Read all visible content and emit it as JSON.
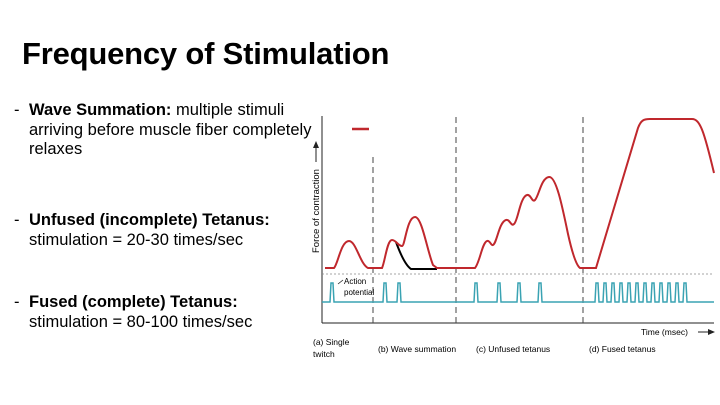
{
  "title": "Frequency of Stimulation",
  "bullets": [
    {
      "term": "Wave Summation",
      "sep": ":",
      "text": " multiple stimuli arriving before muscle fiber completely relaxes"
    },
    {
      "term": "Unfused (incomplete) Tetanus",
      "sep": ":",
      "text": " stimulation = 20-30 times/sec"
    },
    {
      "term": "Fused (complete) Tetanus:",
      "sep": "",
      "text": " stimulation = 80-100 times/sec"
    }
  ],
  "figure": {
    "y_axis_label": "Force of contraction",
    "x_axis_label": "Time (msec)",
    "action_potential_label": [
      "Action",
      "potential"
    ],
    "panels": [
      {
        "label_lines": [
          "(a) Single",
          "twitch"
        ]
      },
      {
        "label_lines": [
          "(b) Wave summation"
        ]
      },
      {
        "label_lines": [
          "(c) Unfused tetanus"
        ]
      },
      {
        "label_lines": [
          "(d) Fused tetanus"
        ]
      }
    ],
    "colors": {
      "force_curve": "#c0282d",
      "action_potential": "#3aa3b3",
      "relaxation_curve": "#000000",
      "axis": "#222222"
    }
  }
}
